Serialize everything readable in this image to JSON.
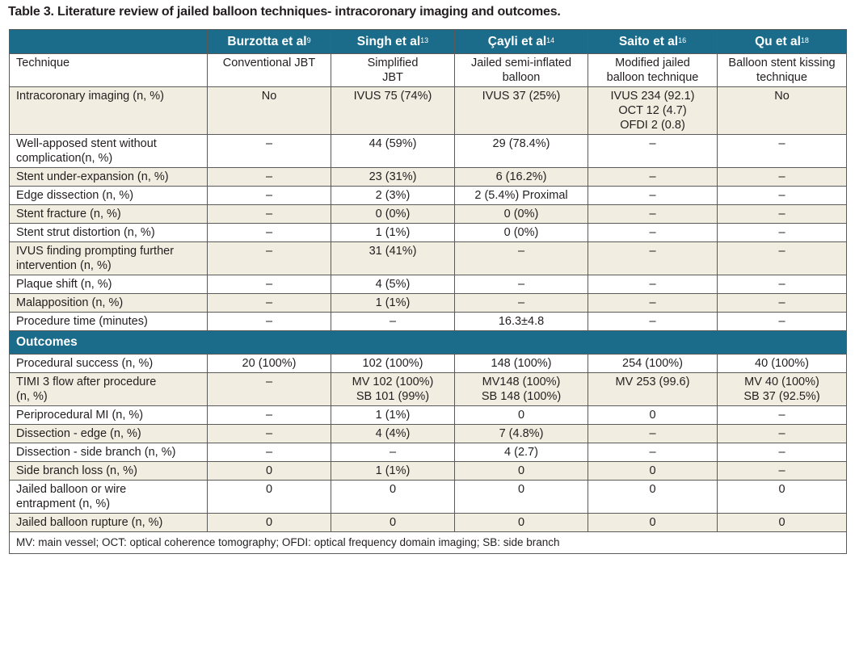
{
  "caption": "Table 3. Literature review of jailed balloon techniques- intracoronary imaging and outcomes.",
  "headers": [
    {
      "name": "Burzotta et al",
      "ref": "9"
    },
    {
      "name": "Singh et al",
      "ref": "13"
    },
    {
      "name": "Çayli et al",
      "ref": "14"
    },
    {
      "name": "Saito et al",
      "ref": "16"
    },
    {
      "name": "Qu et al",
      "ref": "18"
    }
  ],
  "rows": [
    {
      "label": "Technique",
      "cells": [
        "Conventional JBT",
        "Simplified\nJBT",
        "Jailed semi-inflated\nballoon",
        "Modified jailed\nballoon technique",
        "Balloon stent kissing\ntechnique"
      ]
    },
    {
      "label": "Intracoronary imaging (n, %)",
      "cells": [
        "No",
        "IVUS 75 (74%)",
        "IVUS 37 (25%)",
        "IVUS 234 (92.1)\nOCT 12 (4.7)\nOFDI 2 (0.8)",
        "No"
      ]
    },
    {
      "label": "Well-apposed stent without\ncomplication(n, %)",
      "cells": [
        "–",
        "44 (59%)",
        "29 (78.4%)",
        "–",
        "–"
      ]
    },
    {
      "label": "Stent under-expansion (n, %)",
      "cells": [
        "–",
        "23 (31%)",
        "6 (16.2%)",
        "–",
        "–"
      ]
    },
    {
      "label": "Edge dissection (n, %)",
      "cells": [
        "–",
        "2 (3%)",
        "2 (5.4%) Proximal",
        "–",
        "–"
      ]
    },
    {
      "label": "Stent fracture (n, %)",
      "cells": [
        "–",
        "0 (0%)",
        "0 (0%)",
        "–",
        "–"
      ]
    },
    {
      "label": "Stent strut distortion (n, %)",
      "cells": [
        "–",
        "1 (1%)",
        "0 (0%)",
        "–",
        "–"
      ]
    },
    {
      "label": "IVUS finding prompting further\nintervention (n, %)",
      "cells": [
        "–",
        "31 (41%)",
        "–",
        "–",
        "–"
      ]
    },
    {
      "label": "Plaque shift (n, %)",
      "cells": [
        "–",
        "4 (5%)",
        "–",
        "–",
        "–"
      ]
    },
    {
      "label": "Malapposition (n, %)",
      "cells": [
        "–",
        "1 (1%)",
        "–",
        "–",
        "–"
      ]
    },
    {
      "label": "Procedure time (minutes)",
      "cells": [
        "–",
        "–",
        "16.3±4.8",
        "–",
        "–"
      ]
    }
  ],
  "section_label": "Outcomes",
  "outcome_rows": [
    {
      "label": "Procedural success (n, %)",
      "cells": [
        "20 (100%)",
        "102 (100%)",
        "148 (100%)",
        "254 (100%)",
        "40 (100%)"
      ]
    },
    {
      "label": "TIMI 3 flow after procedure\n(n, %)",
      "cells": [
        "–",
        "MV 102 (100%)\nSB 101 (99%)",
        "MV148 (100%)\nSB 148 (100%)",
        "MV 253 (99.6)",
        "MV 40 (100%)\nSB 37 (92.5%)"
      ]
    },
    {
      "label": "Periprocedural MI (n, %)",
      "cells": [
        "–",
        "1 (1%)",
        "0",
        "0",
        "–"
      ]
    },
    {
      "label": "Dissection - edge (n, %)",
      "cells": [
        "–",
        "4 (4%)",
        "7 (4.8%)",
        "–",
        "–"
      ]
    },
    {
      "label": "Dissection - side branch (n, %)",
      "cells": [
        "–",
        "–",
        "4 (2.7)",
        "–",
        "–"
      ]
    },
    {
      "label": "Side branch loss (n, %)",
      "cells": [
        "0",
        "1 (1%)",
        "0",
        "0",
        "–"
      ]
    },
    {
      "label": "Jailed balloon or wire\nentrapment (n, %)",
      "cells": [
        "0",
        "0",
        "0",
        "0",
        "0"
      ]
    },
    {
      "label": "Jailed balloon rupture (n, %)",
      "cells": [
        "0",
        "0",
        "0",
        "0",
        "0"
      ]
    }
  ],
  "footnote": "MV: main vessel; OCT: optical coherence tomography; OFDI: optical frequency domain imaging; SB: side branch",
  "colors": {
    "header_bg": "#1b6c8a",
    "shaded_row": "#f1ede0"
  }
}
